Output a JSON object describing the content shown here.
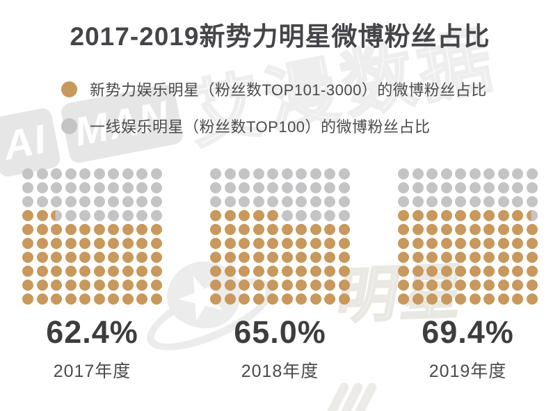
{
  "title": "2017-2019新势力明星微博粉丝占比",
  "legend": {
    "items": [
      {
        "label": "新势力娱乐明星（粉丝数TOP101-3000）的微博粉丝占比",
        "color": "#c8985c"
      },
      {
        "label": "一线娱乐明星（粉丝数TOP100）的微博粉丝占比",
        "color": "#c4c4c6"
      }
    ]
  },
  "chart_data": {
    "type": "waffle",
    "title": "2017-2019新势力明星微博粉丝占比",
    "grid_rows": 10,
    "grid_cols": 10,
    "percent_per_dot": 1,
    "fill_direction": "bottom-up, left-to-right",
    "categories": [
      "2017年度",
      "2018年度",
      "2019年度"
    ],
    "series": [
      {
        "name": "新势力娱乐明星（粉丝数TOP101-3000）的微博粉丝占比",
        "values": [
          62.4,
          65.0,
          69.4
        ],
        "color": "#c8985c"
      },
      {
        "name": "一线娱乐明星（粉丝数TOP100）的微博粉丝占比",
        "values": [
          37.6,
          35.0,
          30.6
        ],
        "color": "#c4c4c6"
      }
    ],
    "value_labels": [
      "62.4%",
      "65.0%",
      "69.4%"
    ],
    "legend_position": "top-left",
    "grid": "off"
  },
  "watermarks": {
    "aiman_block_1": "AI",
    "aiman_block_2": "MAN",
    "aiman_text": "艾漫数据",
    "star_text": "明星"
  },
  "colors": {
    "primary_gold": "#c8985c",
    "secondary_gray": "#c4c4c6",
    "title_text": "#454549",
    "legend_text": "#4a4a4a",
    "percent_text": "#3d3d3d",
    "year_text": "#4a4a4a",
    "watermark_gray": "#ececec",
    "background": "#ffffff"
  }
}
